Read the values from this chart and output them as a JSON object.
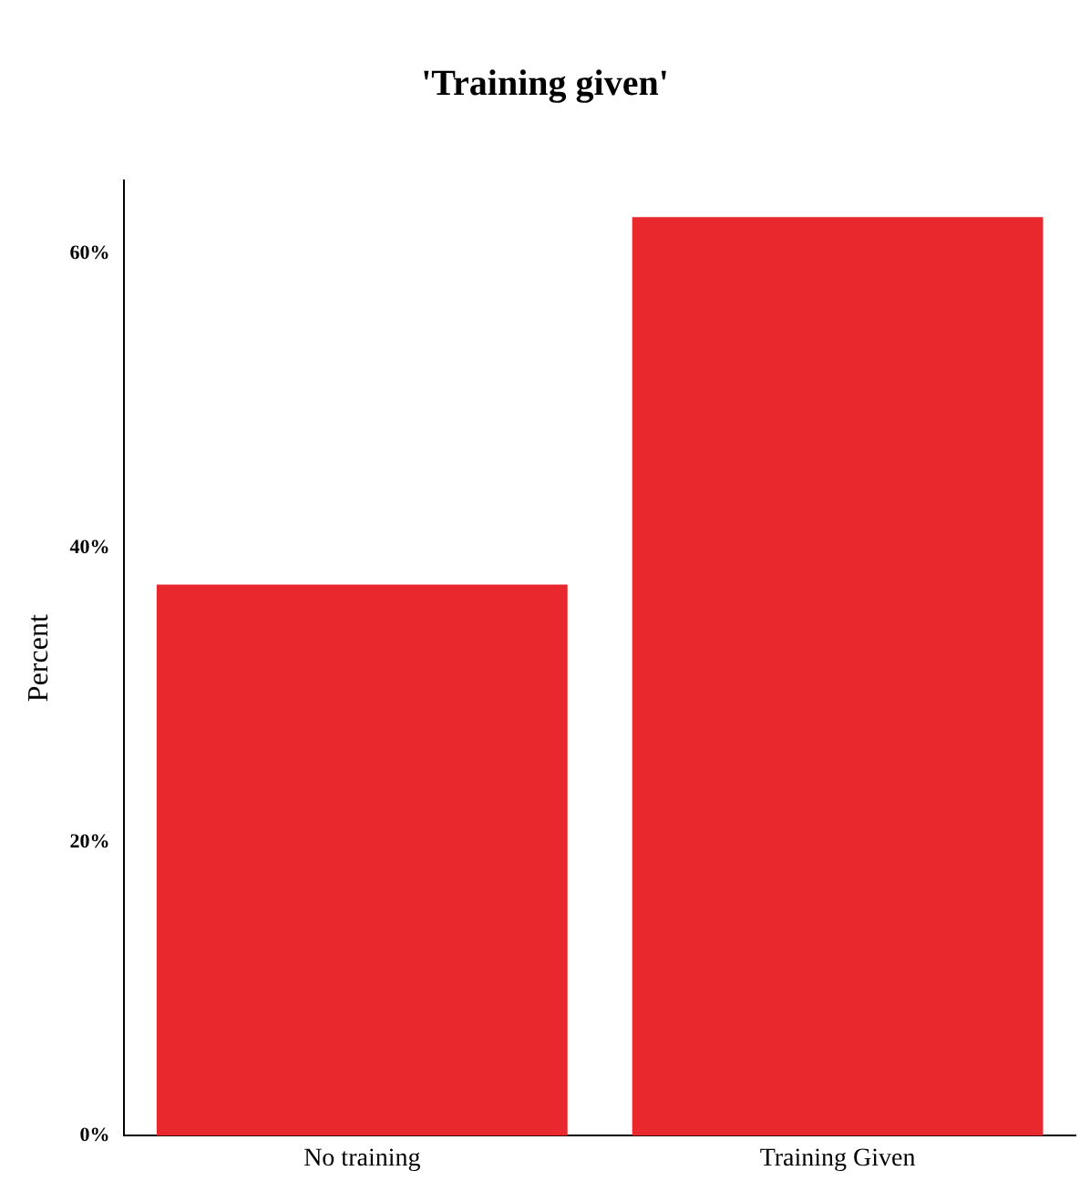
{
  "chart_data": {
    "type": "bar",
    "title": "'Training given'",
    "ylabel": "Percent",
    "categories": [
      "No training",
      "Training Given"
    ],
    "values": [
      37.5,
      62.5
    ],
    "color": "#e8282c",
    "ylim": [
      0,
      65
    ],
    "yticks": [
      {
        "value": 0,
        "label": "0%"
      },
      {
        "value": 20,
        "label": "20%"
      },
      {
        "value": 40,
        "label": "40%"
      },
      {
        "value": 60,
        "label": "60%"
      }
    ],
    "grid": false,
    "legend": false
  }
}
